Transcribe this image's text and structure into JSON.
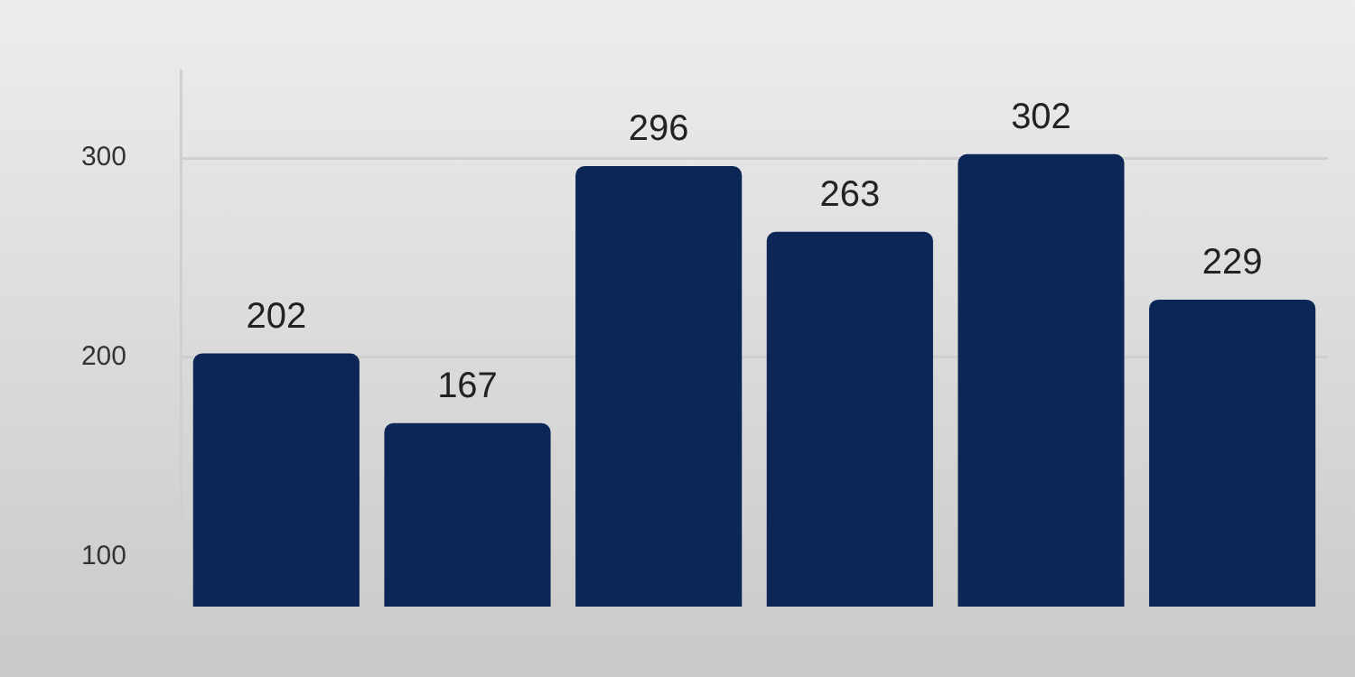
{
  "chart_data": {
    "type": "bar",
    "categories": [
      null,
      null,
      null,
      null,
      null,
      null
    ],
    "values": [
      202,
      167,
      296,
      263,
      302,
      229
    ],
    "color": "#0c2656",
    "ylim": [
      75,
      344
    ],
    "yticks": [
      100,
      200,
      300
    ],
    "grid": "y",
    "data_labels": true,
    "legend": false
  }
}
